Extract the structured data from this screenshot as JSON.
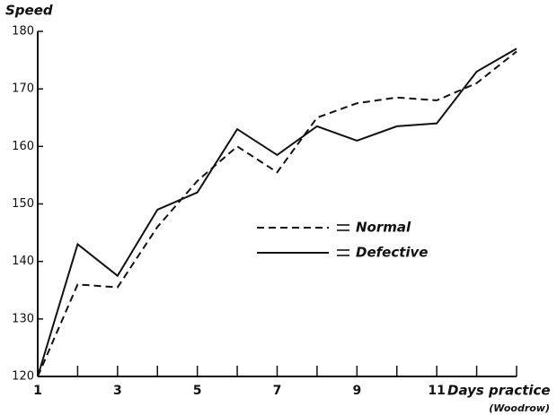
{
  "chart_data": {
    "type": "line",
    "y_label": "Speed",
    "x_label": "Days practice",
    "annotation": "(Woodrow)",
    "x": [
      1,
      2,
      3,
      4,
      5,
      6,
      7,
      8,
      9,
      10,
      11,
      12,
      13
    ],
    "series": [
      {
        "name": "Normal",
        "color": "#111111",
        "dash": true,
        "values": [
          120,
          136,
          135.5,
          146,
          154,
          160,
          155.5,
          165,
          167.5,
          168.5,
          168,
          171,
          176.5
        ]
      },
      {
        "name": "Defective",
        "color": "#111111",
        "dash": false,
        "values": [
          120,
          143,
          137.5,
          149,
          152,
          163,
          158.5,
          163.5,
          161,
          163.5,
          164,
          173,
          177
        ]
      }
    ],
    "xlim": [
      1,
      13
    ],
    "xticks": [
      1,
      3,
      5,
      7,
      9,
      11
    ],
    "xminor_ticks": [
      2,
      4,
      6,
      8,
      10,
      12,
      13
    ],
    "ylim": [
      120,
      180
    ],
    "yticks": [
      120,
      130,
      140,
      150,
      160,
      170,
      180
    ],
    "grid": false,
    "legend": "center"
  }
}
